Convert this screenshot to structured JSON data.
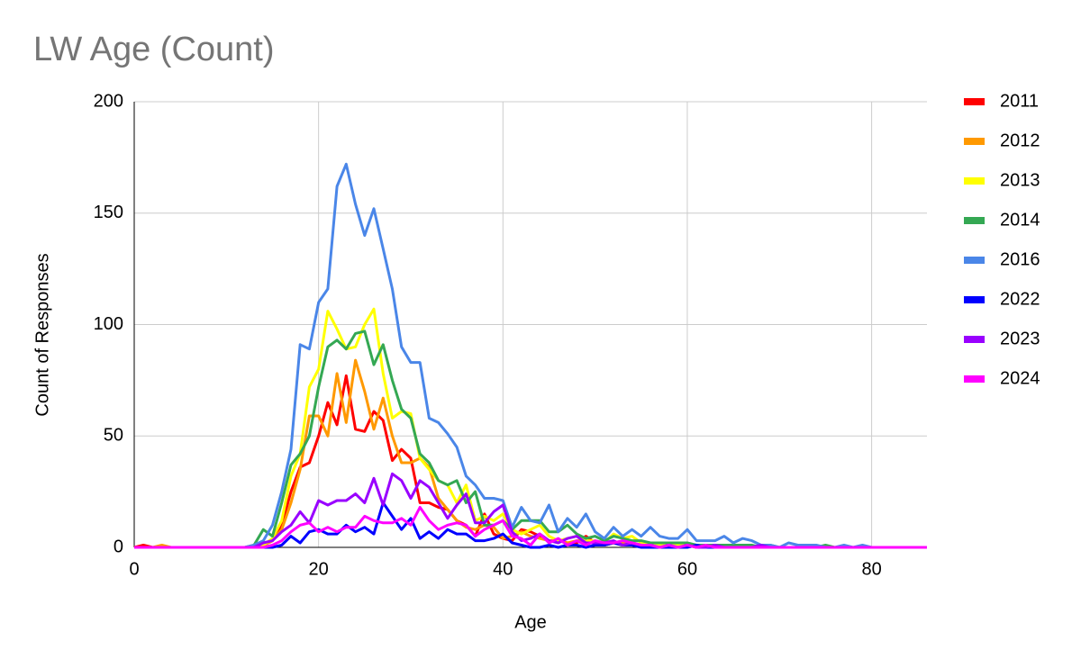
{
  "chart_data": {
    "type": "line",
    "title": "LW Age (Count)",
    "x_label": "Age",
    "y_label": "Count of Responses",
    "x": [
      0,
      1,
      2,
      3,
      4,
      5,
      6,
      7,
      8,
      9,
      10,
      11,
      12,
      13,
      14,
      15,
      16,
      17,
      18,
      19,
      20,
      21,
      22,
      23,
      24,
      25,
      26,
      27,
      28,
      29,
      30,
      31,
      32,
      33,
      34,
      35,
      36,
      37,
      38,
      39,
      40,
      41,
      42,
      43,
      44,
      45,
      46,
      47,
      48,
      49,
      50,
      51,
      52,
      53,
      54,
      55,
      56,
      57,
      58,
      59,
      60,
      61,
      62,
      63,
      64,
      65,
      66,
      67,
      68,
      69,
      70,
      71,
      72,
      73,
      74,
      75,
      76,
      77,
      78,
      79,
      80,
      81,
      82,
      83,
      84,
      85,
      86
    ],
    "series": [
      {
        "name": "2011",
        "color": "#ff0000",
        "values": [
          0,
          1,
          0,
          0,
          0,
          0,
          0,
          0,
          0,
          0,
          0,
          0,
          0,
          0,
          1,
          3,
          10,
          25,
          36,
          38,
          50,
          65,
          55,
          77,
          53,
          52,
          61,
          57,
          39,
          44,
          40,
          20,
          20,
          18,
          17,
          12,
          10,
          5,
          15,
          6,
          4,
          3,
          8,
          7,
          5,
          3,
          3,
          2,
          2,
          5,
          2,
          1,
          2,
          1,
          2,
          1,
          1,
          0,
          1,
          0,
          1,
          1,
          0,
          1,
          1,
          0,
          0,
          0,
          0,
          0,
          0,
          0,
          0,
          0,
          0,
          0,
          0,
          0,
          0,
          0,
          0,
          0,
          0,
          0,
          0,
          0,
          0
        ]
      },
      {
        "name": "2012",
        "color": "#ff9900",
        "values": [
          0,
          0,
          0,
          1,
          0,
          0,
          0,
          0,
          0,
          0,
          0,
          0,
          0,
          0,
          1,
          3,
          8,
          20,
          35,
          59,
          59,
          50,
          78,
          56,
          84,
          70,
          53,
          67,
          50,
          38,
          38,
          40,
          36,
          22,
          17,
          12,
          9,
          8,
          10,
          9,
          4,
          5,
          7,
          5,
          4,
          3,
          3,
          2,
          3,
          3,
          2,
          1,
          2,
          2,
          2,
          1,
          1,
          1,
          1,
          0,
          1,
          0,
          0,
          1,
          0,
          0,
          0,
          0,
          0,
          0,
          0,
          0,
          0,
          0,
          0,
          0,
          0,
          0,
          0,
          0,
          0,
          0,
          0,
          0,
          0,
          0,
          0
        ]
      },
      {
        "name": "2013",
        "color": "#ffff00",
        "values": [
          0,
          0,
          0,
          0,
          0,
          0,
          0,
          0,
          0,
          0,
          0,
          0,
          0,
          0,
          1,
          4,
          12,
          32,
          42,
          72,
          80,
          106,
          98,
          89,
          90,
          100,
          107,
          78,
          58,
          61,
          60,
          40,
          35,
          30,
          28,
          20,
          28,
          12,
          14,
          12,
          15,
          8,
          6,
          8,
          10,
          5,
          3,
          4,
          5,
          3,
          3,
          2,
          6,
          4,
          5,
          2,
          1,
          1,
          1,
          1,
          1,
          0,
          1,
          0,
          1,
          0,
          0,
          0,
          1,
          0,
          0,
          0,
          0,
          0,
          0,
          0,
          0,
          0,
          0,
          0,
          0,
          0,
          0,
          0,
          0,
          0,
          0
        ]
      },
      {
        "name": "2014",
        "color": "#34a853",
        "values": [
          0,
          0,
          0,
          0,
          0,
          0,
          0,
          0,
          0,
          0,
          0,
          0,
          0,
          1,
          8,
          5,
          20,
          37,
          42,
          50,
          72,
          90,
          93,
          89,
          96,
          97,
          82,
          91,
          75,
          62,
          58,
          42,
          38,
          30,
          28,
          30,
          20,
          25,
          10,
          10,
          12,
          8,
          12,
          12,
          12,
          7,
          7,
          10,
          6,
          4,
          5,
          3,
          5,
          4,
          3,
          3,
          2,
          2,
          2,
          2,
          2,
          1,
          1,
          1,
          1,
          1,
          1,
          1,
          0,
          1,
          0,
          0,
          0,
          0,
          0,
          1,
          0,
          0,
          0,
          0,
          0,
          0,
          0,
          0,
          0,
          0,
          0
        ]
      },
      {
        "name": "2016",
        "color": "#4a86e8",
        "values": [
          0,
          0,
          0,
          0,
          0,
          0,
          0,
          0,
          0,
          0,
          0,
          0,
          0,
          1,
          3,
          10,
          25,
          44,
          91,
          89,
          110,
          116,
          162,
          172,
          154,
          140,
          152,
          134,
          116,
          90,
          83,
          83,
          58,
          56,
          51,
          45,
          32,
          28,
          22,
          22,
          21,
          9,
          18,
          12,
          11,
          19,
          7,
          13,
          9,
          15,
          7,
          4,
          9,
          5,
          8,
          5,
          9,
          5,
          4,
          4,
          8,
          3,
          3,
          3,
          5,
          2,
          4,
          3,
          1,
          1,
          0,
          2,
          1,
          1,
          1,
          0,
          0,
          1,
          0,
          1,
          0,
          0,
          0,
          0,
          0,
          0,
          0
        ]
      },
      {
        "name": "2022",
        "color": "#0000ff",
        "values": [
          0,
          0,
          0,
          0,
          0,
          0,
          0,
          0,
          0,
          0,
          0,
          0,
          0,
          0,
          0,
          0,
          1,
          5,
          2,
          7,
          8,
          6,
          6,
          10,
          7,
          9,
          6,
          20,
          14,
          8,
          13,
          4,
          7,
          4,
          8,
          6,
          6,
          3,
          3,
          4,
          6,
          2,
          1,
          0,
          0,
          1,
          0,
          1,
          1,
          0,
          1,
          1,
          2,
          1,
          1,
          0,
          0,
          0,
          0,
          0,
          0,
          1,
          0,
          0,
          0,
          0,
          0,
          0,
          0,
          0,
          0,
          0,
          0,
          0,
          0,
          0,
          0,
          0,
          0,
          0,
          0,
          0,
          0,
          0,
          0,
          0,
          0
        ]
      },
      {
        "name": "2023",
        "color": "#9900ff",
        "values": [
          0,
          0,
          0,
          0,
          0,
          0,
          0,
          0,
          0,
          0,
          0,
          0,
          0,
          0,
          2,
          3,
          7,
          10,
          16,
          11,
          21,
          19,
          21,
          21,
          24,
          20,
          31,
          19,
          33,
          30,
          22,
          30,
          27,
          20,
          13,
          19,
          24,
          11,
          11,
          16,
          19,
          7,
          3,
          4,
          6,
          3,
          2,
          4,
          5,
          2,
          2,
          2,
          3,
          1,
          2,
          1,
          1,
          0,
          1,
          0,
          1,
          0,
          0,
          1,
          0,
          0,
          0,
          0,
          1,
          0,
          0,
          0,
          0,
          0,
          0,
          0,
          0,
          0,
          0,
          0,
          0,
          0,
          0,
          0,
          0,
          0,
          0
        ]
      },
      {
        "name": "2024",
        "color": "#ff00ff",
        "values": [
          0,
          0,
          0,
          0,
          0,
          0,
          0,
          0,
          0,
          0,
          0,
          0,
          0,
          0,
          0,
          1,
          3,
          7,
          10,
          11,
          7,
          9,
          7,
          9,
          9,
          14,
          12,
          11,
          11,
          13,
          10,
          18,
          12,
          8,
          10,
          11,
          10,
          5,
          8,
          10,
          12,
          5,
          4,
          1,
          6,
          2,
          4,
          1,
          3,
          1,
          3,
          2,
          2,
          3,
          2,
          1,
          1,
          0,
          1,
          0,
          1,
          0,
          1,
          0,
          0,
          0,
          0,
          0,
          0,
          0,
          0,
          0,
          0,
          0,
          0,
          0,
          0,
          0,
          0,
          0,
          0,
          0,
          0,
          0,
          0,
          0,
          0
        ]
      }
    ],
    "xlim": [
      0,
      86
    ],
    "xticks": [
      0,
      20,
      40,
      60,
      80
    ],
    "ylim": [
      0,
      200
    ],
    "yticks": [
      0,
      50,
      100,
      150,
      200
    ],
    "grid": true,
    "legend": "right"
  }
}
